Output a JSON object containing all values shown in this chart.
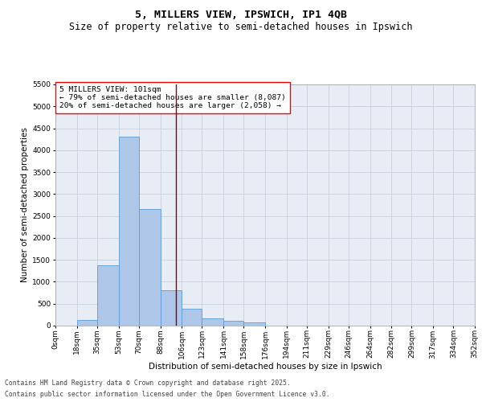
{
  "title_line1": "5, MILLERS VIEW, IPSWICH, IP1 4QB",
  "title_line2": "Size of property relative to semi-detached houses in Ipswich",
  "xlabel": "Distribution of semi-detached houses by size in Ipswich",
  "ylabel": "Number of semi-detached properties",
  "annotation_title": "5 MILLERS VIEW: 101sqm",
  "annotation_line2": "← 79% of semi-detached houses are smaller (8,087)",
  "annotation_line3": "20% of semi-detached houses are larger (2,058) →",
  "property_size_sqm": 101,
  "footnote_line1": "Contains HM Land Registry data © Crown copyright and database right 2025.",
  "footnote_line2": "Contains public sector information licensed under the Open Government Licence v3.0.",
  "bin_labels": [
    "0sqm",
    "18sqm",
    "35sqm",
    "53sqm",
    "70sqm",
    "88sqm",
    "106sqm",
    "123sqm",
    "141sqm",
    "158sqm",
    "176sqm",
    "194sqm",
    "211sqm",
    "229sqm",
    "246sqm",
    "264sqm",
    "282sqm",
    "299sqm",
    "317sqm",
    "334sqm",
    "352sqm"
  ],
  "bin_edges": [
    0,
    18,
    35,
    53,
    70,
    88,
    106,
    123,
    141,
    158,
    176,
    194,
    211,
    229,
    246,
    264,
    282,
    299,
    317,
    334,
    352
  ],
  "bar_values": [
    5,
    120,
    1380,
    4300,
    2660,
    800,
    380,
    165,
    110,
    70,
    0,
    0,
    0,
    0,
    0,
    0,
    0,
    0,
    0,
    0
  ],
  "bar_color": "#aec6e8",
  "bar_edge_color": "#5b9bd5",
  "vline_x": 101,
  "vline_color": "#8b0000",
  "ylim": [
    0,
    5500
  ],
  "yticks": [
    0,
    500,
    1000,
    1500,
    2000,
    2500,
    3000,
    3500,
    4000,
    4500,
    5000,
    5500
  ],
  "grid_color": "#c8d0de",
  "background_color": "#e8edf5",
  "title_fontsize": 9.5,
  "subtitle_fontsize": 8.5,
  "axis_label_fontsize": 7.5,
  "tick_fontsize": 6.5,
  "annotation_fontsize": 6.8,
  "footnote_fontsize": 5.8
}
